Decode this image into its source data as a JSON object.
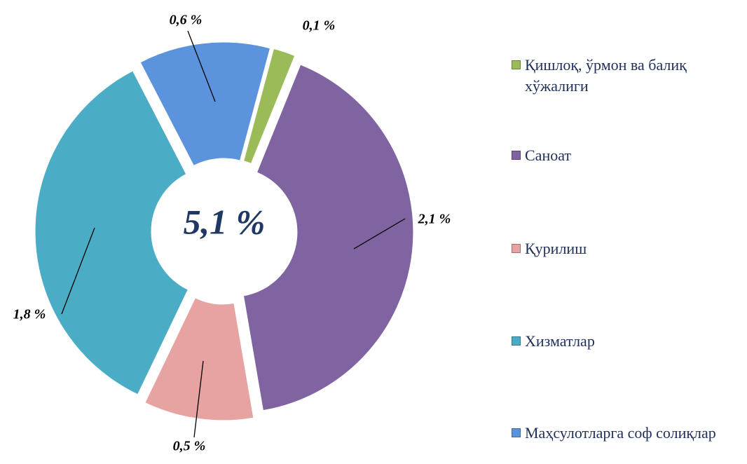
{
  "chart_data": {
    "type": "donut",
    "center_label": "5,1 %",
    "categories": [
      "Қишлоқ, ўрмон ва балиқ хўжалиги",
      "Саноат",
      "Қурилиш",
      "Хизматлар",
      "Маҳсулотларга соф солиқлар"
    ],
    "values": [
      0.1,
      2.1,
      0.5,
      1.8,
      0.6
    ],
    "value_labels": [
      "0,1 %",
      "2,1 %",
      "0,5 %",
      "1,8 %",
      "0,6 %"
    ],
    "colors": [
      "#9bbb59",
      "#8064a2",
      "#e6a3a1",
      "#4bacc6",
      "#5b93dc"
    ],
    "legend": "right"
  }
}
